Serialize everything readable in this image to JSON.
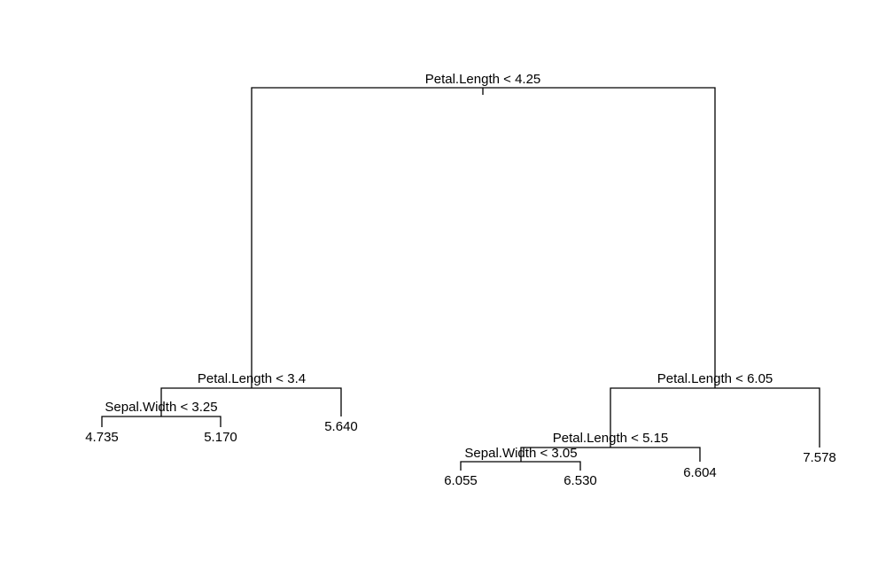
{
  "tree": {
    "splits": {
      "root": "Petal.Length < 4.25",
      "left": "Petal.Length < 3.4",
      "left_left": "Sepal.Width < 3.25",
      "right": "Petal.Length < 6.05",
      "right_left": "Petal.Length < 5.15",
      "right_left_left": "Sepal.Width < 3.05"
    },
    "leaves": {
      "leaf_1": "4.735",
      "leaf_2": "5.170",
      "leaf_3": "5.640",
      "leaf_4": "6.055",
      "leaf_5": "6.530",
      "leaf_6": "6.604",
      "leaf_7": "7.578"
    },
    "line_color": "#000000",
    "background_color": "#ffffff"
  }
}
